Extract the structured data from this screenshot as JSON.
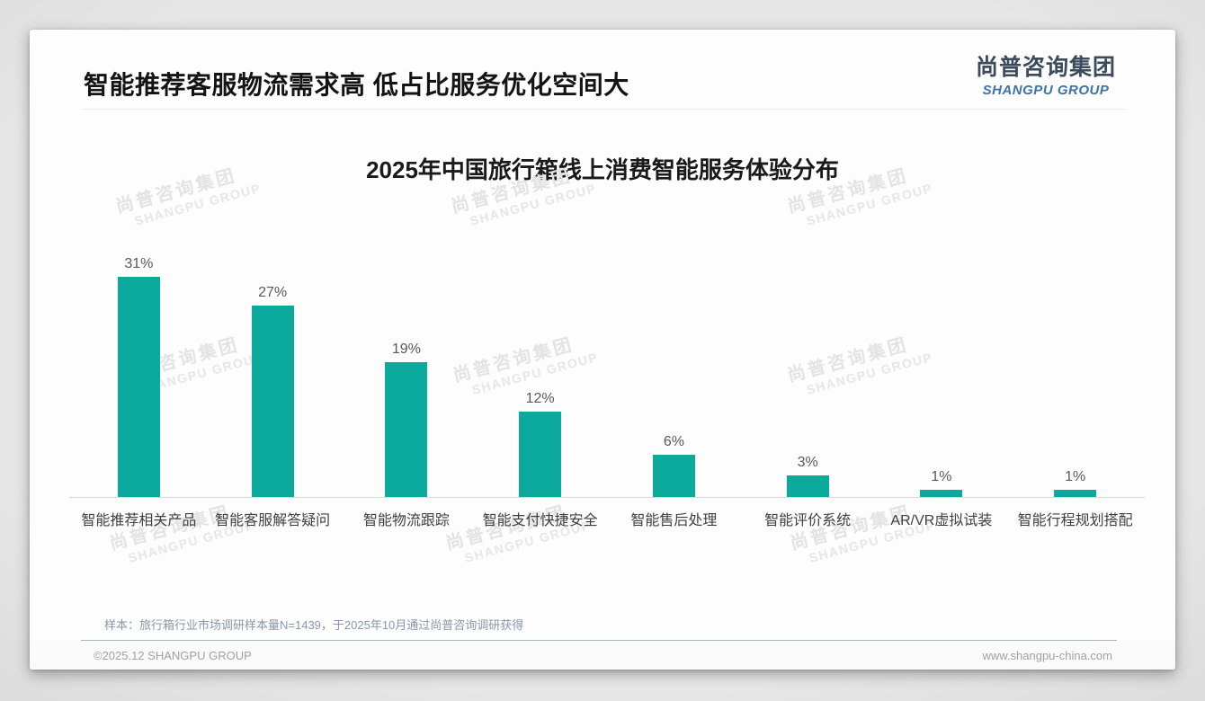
{
  "header": {
    "title": "智能推荐客服物流需求高 低占比服务优化空间大",
    "logo": {
      "cn": "尚普咨询集团",
      "en": "SHANGPU GROUP"
    }
  },
  "watermark": {
    "cn": "尚普咨询集团",
    "en": "SHANGPU GROUP"
  },
  "chart_data": {
    "type": "bar",
    "title": "2025年中国旅行箱线上消费智能服务体验分布",
    "categories": [
      "智能推荐相关产品",
      "智能客服解答疑问",
      "智能物流跟踪",
      "智能支付快捷安全",
      "智能售后处理",
      "智能评价系统",
      "AR/VR虚拟试装",
      "智能行程规划搭配"
    ],
    "values": [
      31,
      27,
      19,
      12,
      6,
      3,
      1,
      1
    ],
    "unit": "%",
    "ylim": [
      0,
      35
    ],
    "grid": false,
    "legend": "none",
    "value_labels": "above bars"
  },
  "footnote": "样本：旅行箱行业市场调研样本量N=1439，于2025年10月通过尚普咨询调研获得",
  "footer": {
    "left": "©2025.12 SHANGPU GROUP",
    "right": "www.shangpu-china.com"
  },
  "colors": {
    "bar": "#0baa9d",
    "logo_cn": "#3c4a5d",
    "logo_en": "#3f72a6",
    "value_label": "#595959",
    "category_label": "#3f3f3f",
    "footnote": "#8897ab",
    "footer_text": "#a1a1a1",
    "axis_line": "#d9d9d9",
    "watermark": "#e3e3e3"
  }
}
